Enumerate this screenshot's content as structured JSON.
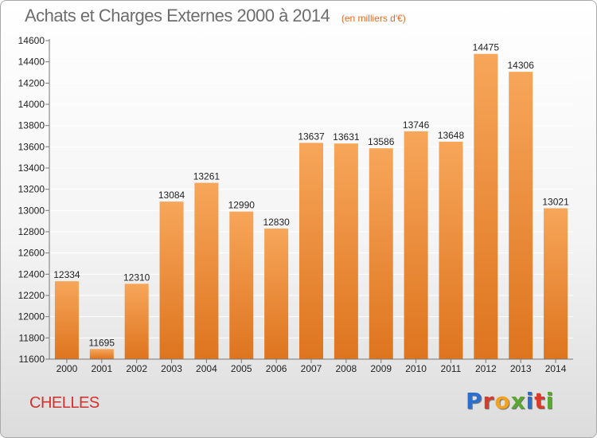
{
  "header": {
    "title": "Achats et Charges Externes 2000 à 2014",
    "unit": "(en milliers d'€)"
  },
  "footer": {
    "commune": "CHELLES",
    "logo_text": "Proxiti",
    "logo_colors": [
      "#2b6fce",
      "#d93b2a",
      "#f0a322",
      "#5aa832",
      "#2b6fce",
      "#d93b2a",
      "#5aa832"
    ]
  },
  "colors": {
    "bar_top": "#f7a65a",
    "bar_bottom": "#de741e",
    "axis": "#777777",
    "grid": "#ffffff",
    "title": "#6d6d6d",
    "unit": "#e46a22",
    "commune": "#d1332e"
  },
  "chart_data": {
    "type": "bar",
    "title": "Achats et Charges Externes 2000 à 2014",
    "categories": [
      "2000",
      "2001",
      "2002",
      "2003",
      "2004",
      "2005",
      "2006",
      "2007",
      "2008",
      "2009",
      "2010",
      "2011",
      "2012",
      "2013",
      "2014"
    ],
    "values": [
      12334,
      11695,
      12310,
      13084,
      13261,
      12990,
      12830,
      13637,
      13631,
      13586,
      13746,
      13648,
      14475,
      14306,
      13021
    ],
    "value_labels": [
      "12334",
      "11695",
      "12310",
      "13084",
      "13261",
      "12990",
      "12830",
      "13637",
      "13631",
      "13586",
      "13746",
      "13648",
      "14475",
      "14306",
      "13021"
    ],
    "ylim": [
      11600,
      14600
    ],
    "yticks": [
      11600,
      11800,
      12000,
      12200,
      12400,
      12600,
      12800,
      13000,
      13200,
      13400,
      13600,
      13800,
      14000,
      14200,
      14400,
      14600
    ],
    "ytick_labels": [
      "11600",
      "11800",
      "12000",
      "12200",
      "12400",
      "12600",
      "12800",
      "13000",
      "13200",
      "13400",
      "13600",
      "13800",
      "14000",
      "14200",
      "14400",
      "14600"
    ],
    "grid": true,
    "legend": "none"
  }
}
